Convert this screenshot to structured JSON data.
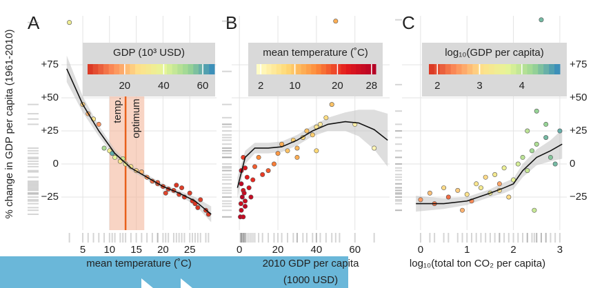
{
  "chart_data": [
    {
      "type": "scatter",
      "title": "A",
      "ylabel": "% change in GDP per capita (1961-2010)",
      "xlabel": [
        "mean temperature (˚C)"
      ],
      "xlim": [
        1,
        30
      ],
      "ylim": [
        -50,
        112
      ],
      "xticks": [
        5,
        10,
        15,
        20,
        25
      ],
      "yticks": [
        {
          "value": 75,
          "label": "+75"
        },
        {
          "value": 50,
          "label": "+50"
        },
        {
          "value": 25,
          "label": "+25"
        },
        0,
        {
          "value": -25,
          "label": "−25"
        }
      ],
      "ytick_side": "left",
      "grid": true,
      "x": [
        2.5,
        5,
        6,
        7,
        8,
        9,
        10,
        10.5,
        11,
        12,
        12.5,
        13,
        14,
        15,
        16,
        17,
        18,
        19,
        20,
        21,
        22,
        22.5,
        23,
        24,
        25,
        25.5,
        26,
        27,
        28,
        28.5,
        19,
        20.5,
        23.5,
        26.5
      ],
      "y": [
        107,
        45,
        38,
        34,
        30,
        12,
        10,
        8,
        5,
        2,
        4,
        0,
        -2,
        -5,
        -6,
        -10,
        -13,
        -15,
        -17,
        -19,
        -20,
        -16,
        -23,
        -25,
        -22,
        -28,
        -30,
        -27,
        -35,
        -38,
        -14,
        -22,
        -18,
        -33
      ],
      "color_values": [
        35,
        25,
        20,
        30,
        15,
        50,
        35,
        60,
        40,
        30,
        45,
        35,
        30,
        25,
        20,
        15,
        10,
        8,
        5,
        3,
        4,
        2,
        3,
        2,
        3,
        2,
        2,
        3,
        2,
        2,
        6,
        4,
        3,
        2
      ],
      "colorscale": [
        "#d7301f",
        "#fc8d59",
        "#fee08b",
        "#e6f598",
        "#99d594",
        "#3288bd"
      ],
      "clim": [
        1,
        66
      ],
      "colorbar_title": "GDP (10³ USD)",
      "colorbar_ticks": [
        20,
        40,
        60
      ],
      "fit": {
        "x": [
          2,
          5,
          8,
          11,
          14,
          17,
          20,
          23,
          26,
          29
        ],
        "y": [
          72,
          45,
          25,
          8,
          -3,
          -10,
          -17,
          -22,
          -28,
          -38
        ],
        "lower": [
          62,
          39,
          21,
          5,
          -5,
          -12,
          -19,
          -24,
          -31,
          -44
        ],
        "upper": [
          82,
          51,
          29,
          11,
          -1,
          -8,
          -15,
          -20,
          -25,
          -32
        ]
      },
      "optimum_band": [
        10,
        16.5
      ],
      "optimum_line": 13,
      "annotations": [
        "temp.",
        "optimum"
      ]
    },
    {
      "type": "scatter",
      "title": "B",
      "xlabel": [
        "2010 GDP per capita",
        "(1000 USD)"
      ],
      "xlim": [
        -4,
        78
      ],
      "ylim": [
        -50,
        112
      ],
      "xticks": [
        0,
        20,
        40,
        60
      ],
      "yticks": [
        75,
        50,
        25,
        0,
        -25
      ],
      "ytick_side": "none",
      "grid": true,
      "x": [
        0.5,
        1,
        0.8,
        1.5,
        2,
        1,
        2.5,
        3,
        4,
        5,
        6,
        1,
        2,
        3,
        7,
        8,
        10,
        12,
        15,
        18,
        20,
        22,
        25,
        28,
        30,
        33,
        35,
        38,
        40,
        42,
        45,
        48,
        52,
        40,
        30,
        60,
        70,
        50,
        3,
        2
      ],
      "y": [
        -40,
        -35,
        -30,
        -25,
        -20,
        -15,
        -22,
        -28,
        -10,
        -18,
        -25,
        -5,
        5,
        -3,
        -12,
        -2,
        5,
        -8,
        -5,
        0,
        8,
        15,
        10,
        18,
        12,
        20,
        25,
        22,
        28,
        30,
        35,
        45,
        70,
        10,
        5,
        30,
        12,
        108,
        -32,
        -40
      ],
      "color_values": [
        27,
        26,
        25,
        28,
        24,
        27,
        26,
        25,
        22,
        24,
        26,
        25,
        20,
        23,
        21,
        18,
        15,
        20,
        18,
        16,
        14,
        12,
        10,
        9,
        11,
        8,
        10,
        9,
        6,
        5,
        7,
        10,
        9,
        8,
        12,
        4,
        3,
        12,
        27,
        26
      ],
      "colorscale": [
        "#ffffcc",
        "#fed976",
        "#fd8d3c",
        "#e31a1c",
        "#b10026"
      ],
      "clim": [
        1,
        29
      ],
      "colorbar_title": "mean temperature (˚C)",
      "colorbar_ticks": [
        2,
        10,
        20,
        28
      ],
      "fit": {
        "x": [
          -1,
          3,
          8,
          15,
          22,
          30,
          38,
          46,
          55,
          62,
          70,
          77
        ],
        "y": [
          -18,
          5,
          12,
          12,
          13,
          18,
          25,
          30,
          32,
          31,
          26,
          18
        ],
        "lower": [
          -26,
          0,
          8,
          8,
          9,
          14,
          21,
          25,
          25,
          21,
          11,
          -2
        ],
        "upper": [
          -10,
          10,
          16,
          16,
          17,
          22,
          29,
          35,
          39,
          41,
          41,
          38
        ]
      }
    },
    {
      "type": "scatter",
      "title": "C",
      "xlabel": [
        "log₁₀(total ton CO₂ per capita)"
      ],
      "xlim": [
        -0.4,
        3.15
      ],
      "ylim": [
        -50,
        112
      ],
      "xticks": [
        0,
        1,
        2,
        3
      ],
      "yticks": [
        {
          "value": 75,
          "label": "+75"
        },
        {
          "value": 50,
          "label": "+50"
        },
        {
          "value": 25,
          "label": "+25"
        },
        0,
        {
          "value": -25,
          "label": "−25"
        }
      ],
      "ytick_side": "right",
      "grid": true,
      "x": [
        0,
        0.2,
        0.3,
        0.5,
        0.6,
        0.8,
        1.0,
        1.1,
        1.2,
        1.3,
        1.4,
        1.5,
        1.6,
        1.7,
        1.8,
        1.9,
        2.0,
        2.1,
        2.2,
        2.3,
        2.4,
        2.5,
        2.5,
        2.6,
        2.6,
        2.7,
        2.8,
        2.9,
        3.0,
        2.45,
        2.3,
        2.7,
        1.7,
        0.9
      ],
      "y": [
        -27,
        -22,
        -30,
        -18,
        -25,
        -20,
        -23,
        -28,
        -15,
        -18,
        -10,
        -22,
        -8,
        -20,
        -3,
        -25,
        -12,
        0,
        5,
        -5,
        10,
        15,
        40,
        60,
        109,
        30,
        5,
        0,
        25,
        -35,
        25,
        20,
        -15,
        -35
      ],
      "color_values": [
        2.5,
        2.8,
        2.3,
        3.0,
        2.2,
        2.9,
        3.1,
        2.4,
        3.2,
        3.3,
        3.0,
        3.4,
        3.3,
        3.1,
        3.5,
        3.0,
        3.6,
        3.8,
        4.0,
        3.9,
        4.2,
        4.1,
        4.3,
        4.4,
        4.5,
        4.3,
        4.4,
        4.5,
        4.6,
        3.9,
        4.0,
        4.5,
        2.6,
        2.7
      ],
      "colorscale": [
        "#d7301f",
        "#fc8d59",
        "#fee08b",
        "#e6f598",
        "#99d594",
        "#3288bd"
      ],
      "clim": [
        1.8,
        4.9
      ],
      "colorbar_title": "log₁₀(GDP per capita)",
      "colorbar_ticks": [
        2,
        3,
        4
      ],
      "fit": {
        "x": [
          -0.1,
          0.5,
          1.0,
          1.5,
          1.8,
          2.0,
          2.2,
          2.5,
          2.8,
          3.05
        ],
        "y": [
          -30,
          -30,
          -28,
          -22,
          -18,
          -15,
          -5,
          5,
          10,
          15
        ],
        "lower": [
          -36,
          -34,
          -31,
          -25,
          -22,
          -19,
          -10,
          -1,
          2,
          4
        ],
        "upper": [
          -24,
          -26,
          -25,
          -19,
          -14,
          -11,
          0,
          11,
          18,
          26
        ]
      }
    }
  ]
}
